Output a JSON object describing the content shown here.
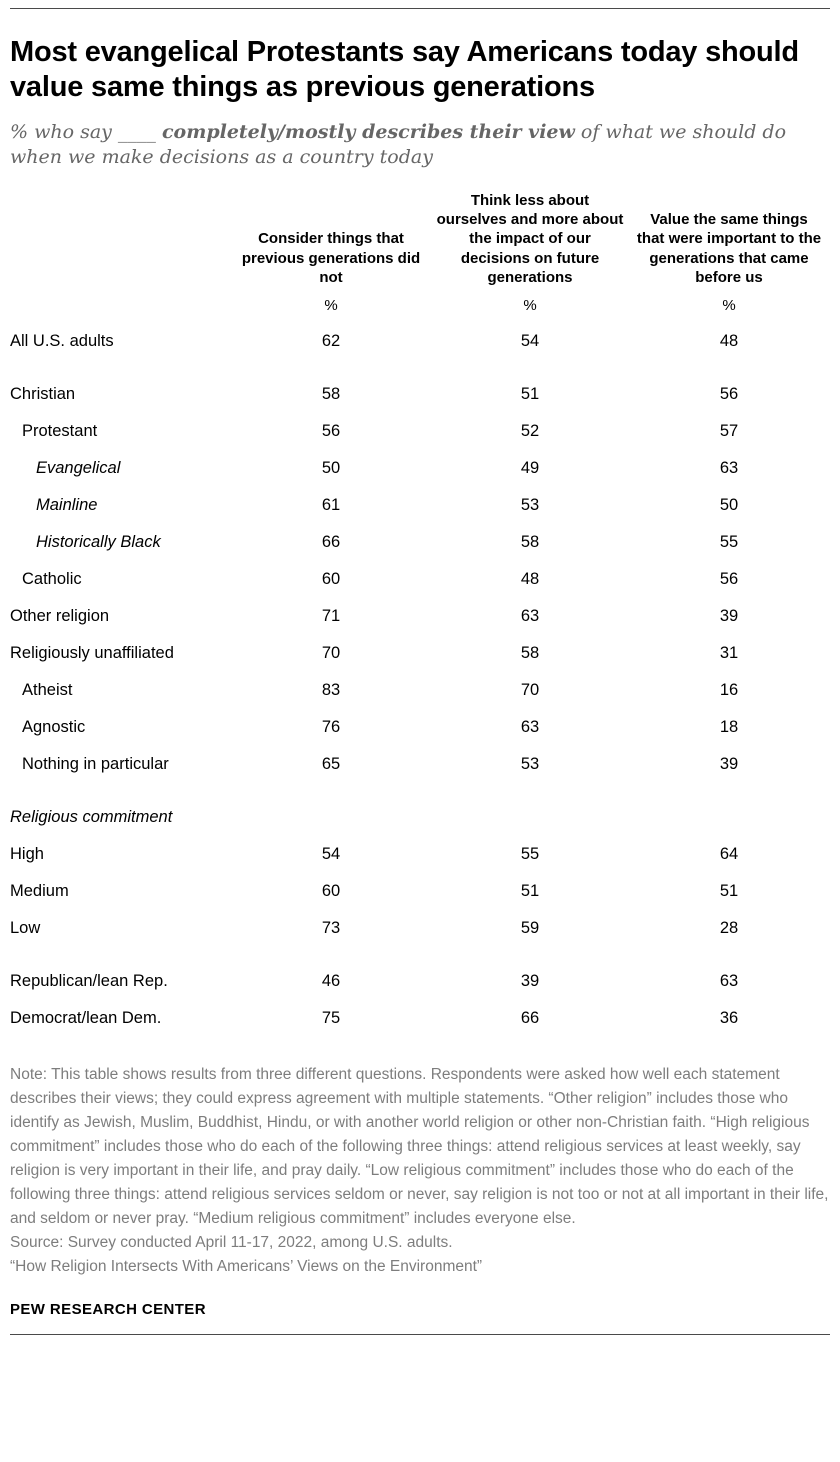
{
  "header": {
    "title": "Most evangelical Protestants say Americans today should value same things as previous generations",
    "subtitle_prefix": "% who say ____ ",
    "subtitle_bold": "completely/mostly describes their view",
    "subtitle_suffix": " of what we should do when we make decisions as a country today"
  },
  "chart_data": {
    "type": "table",
    "unit": "%",
    "columns": [
      "Consider things that previous generations did not",
      "Think less about ourselves and more about the impact of our decisions on future generations",
      "Value the same things that were important to the generations that came before us"
    ],
    "rows": [
      {
        "label": "All U.S. adults",
        "indent": 0,
        "italic": false,
        "gap_before": false,
        "values": [
          62,
          54,
          48
        ]
      },
      {
        "label": "Christian",
        "indent": 0,
        "italic": false,
        "gap_before": true,
        "values": [
          58,
          51,
          56
        ]
      },
      {
        "label": "Protestant",
        "indent": 1,
        "italic": false,
        "gap_before": false,
        "values": [
          56,
          52,
          57
        ]
      },
      {
        "label": "Evangelical",
        "indent": 2,
        "italic": true,
        "gap_before": false,
        "values": [
          50,
          49,
          63
        ]
      },
      {
        "label": "Mainline",
        "indent": 2,
        "italic": true,
        "gap_before": false,
        "values": [
          61,
          53,
          50
        ]
      },
      {
        "label": "Historically Black",
        "indent": 2,
        "italic": true,
        "gap_before": false,
        "values": [
          66,
          58,
          55
        ]
      },
      {
        "label": "Catholic",
        "indent": 1,
        "italic": false,
        "gap_before": false,
        "values": [
          60,
          48,
          56
        ]
      },
      {
        "label": "Other religion",
        "indent": 0,
        "italic": false,
        "gap_before": false,
        "values": [
          71,
          63,
          39
        ]
      },
      {
        "label": "Religiously unaffiliated",
        "indent": 0,
        "italic": false,
        "gap_before": false,
        "values": [
          70,
          58,
          31
        ]
      },
      {
        "label": "Atheist",
        "indent": 1,
        "italic": false,
        "gap_before": false,
        "values": [
          83,
          70,
          16
        ]
      },
      {
        "label": "Agnostic",
        "indent": 1,
        "italic": false,
        "gap_before": false,
        "values": [
          76,
          63,
          18
        ]
      },
      {
        "label": "Nothing in particular",
        "indent": 1,
        "italic": false,
        "gap_before": false,
        "values": [
          65,
          53,
          39
        ]
      },
      {
        "label": "Religious commitment",
        "indent": 0,
        "italic": true,
        "gap_before": true,
        "values": null
      },
      {
        "label": "High",
        "indent": 0,
        "italic": false,
        "gap_before": false,
        "values": [
          54,
          55,
          64
        ]
      },
      {
        "label": "Medium",
        "indent": 0,
        "italic": false,
        "gap_before": false,
        "values": [
          60,
          51,
          51
        ]
      },
      {
        "label": "Low",
        "indent": 0,
        "italic": false,
        "gap_before": false,
        "values": [
          73,
          59,
          28
        ]
      },
      {
        "label": "Republican/lean Rep.",
        "indent": 0,
        "italic": false,
        "gap_before": true,
        "values": [
          46,
          39,
          63
        ]
      },
      {
        "label": "Democrat/lean Dem.",
        "indent": 0,
        "italic": false,
        "gap_before": false,
        "values": [
          75,
          66,
          36
        ]
      }
    ]
  },
  "notes": {
    "note": "Note: This table shows results from three different questions. Respondents were asked how well each statement describes their views; they could express agreement with multiple statements. “Other religion” includes those who identify as Jewish, Muslim, Buddhist, Hindu, or with another world religion or other non-Christian faith. “High religious commitment” includes those who do each of the following three things: attend religious services at least weekly, say religion is very important in their life, and pray daily. “Low religious commitment” includes those who do each of the following three things: attend religious services seldom or never, say religion is not too or not at all important in their life, and seldom or never pray. “Medium religious commitment” includes everyone else.",
    "source": "Source: Survey conducted April 11-17, 2022, among U.S. adults.",
    "report": "“How Religion Intersects With Americans’ Views on the Environment”"
  },
  "footer": {
    "brand": "PEW RESEARCH CENTER"
  }
}
